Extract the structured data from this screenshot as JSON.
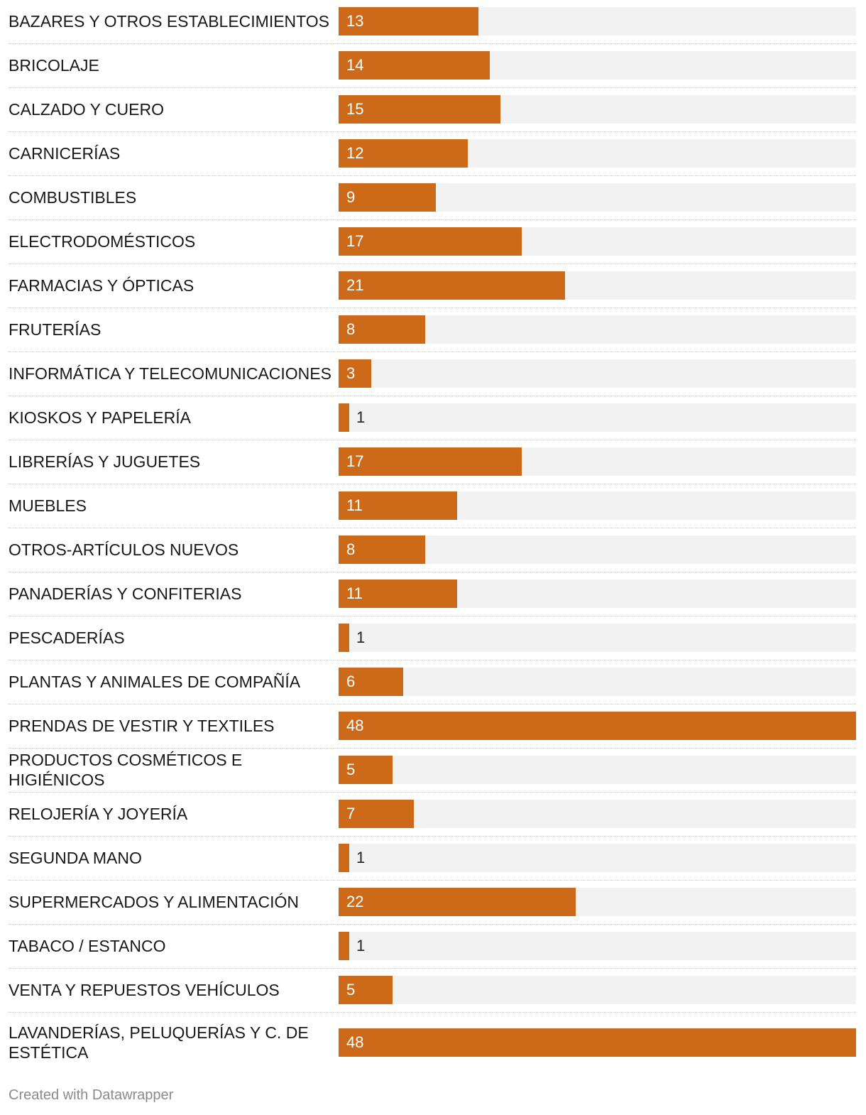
{
  "chart_data": {
    "type": "bar",
    "orientation": "horizontal",
    "categories": [
      "BAZARES Y OTROS ESTABLECIMIENTOS",
      "BRICOLAJE",
      "CALZADO Y CUERO",
      "CARNICERÍAS",
      "COMBUSTIBLES",
      "ELECTRODOMÉSTICOS",
      "FARMACIAS Y ÓPTICAS",
      "FRUTERÍAS",
      "INFORMÁTICA Y TELECOMUNICACIONES",
      "KIOSKOS Y PAPELERÍA",
      "LIBRERÍAS Y JUGUETES",
      "MUEBLES",
      "OTROS-ARTÍCULOS NUEVOS",
      "PANADERÍAS Y CONFITERIAS",
      "PESCADERÍAS",
      "PLANTAS Y ANIMALES DE COMPAÑÍA",
      "PRENDAS DE VESTIR Y TEXTILES",
      "PRODUCTOS COSMÉTICOS E HIGIÉNICOS",
      "RELOJERÍA Y JOYERÍA",
      "SEGUNDA MANO",
      "SUPERMERCADOS Y ALIMENTACIÓN",
      "TABACO / ESTANCO",
      "VENTA Y REPUESTOS VEHÍCULOS",
      "LAVANDERÍAS, PELUQUERÍAS Y C. DE ESTÉTICA"
    ],
    "values": [
      13,
      14,
      15,
      12,
      9,
      17,
      21,
      8,
      3,
      1,
      17,
      11,
      8,
      11,
      1,
      6,
      48,
      5,
      7,
      1,
      22,
      1,
      5,
      48
    ],
    "xlim": [
      0,
      48
    ],
    "bar_color": "#cd6a1a",
    "track_color": "#f2f2f2",
    "grid": false
  },
  "footer": {
    "credit": "Created with Datawrapper"
  }
}
